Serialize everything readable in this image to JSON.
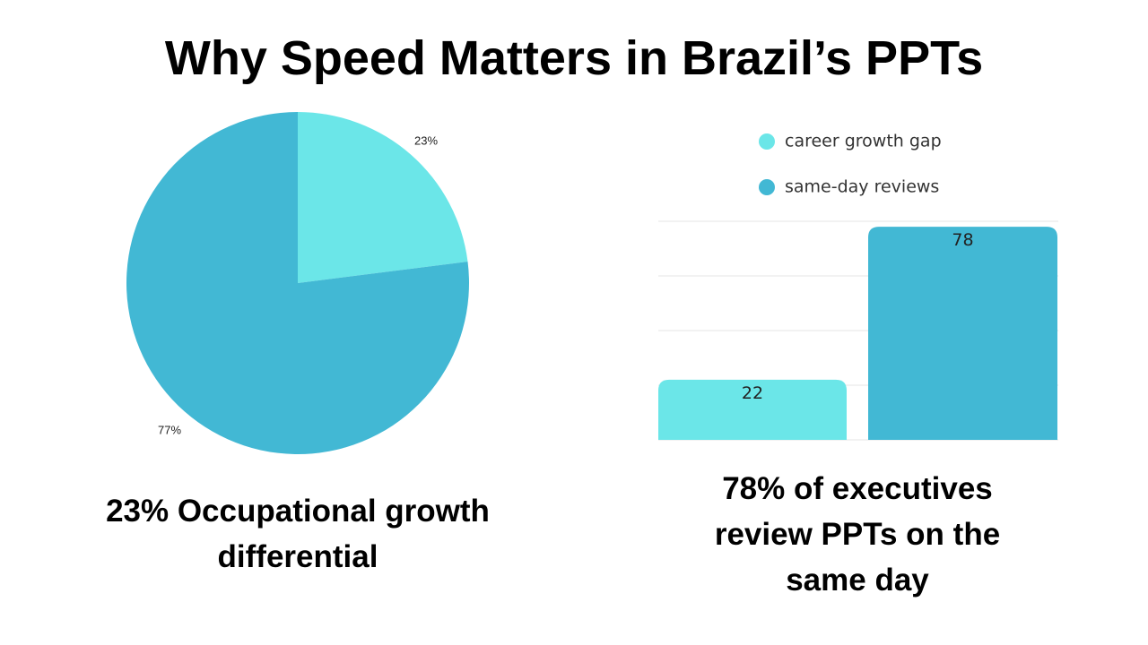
{
  "title": "Why Speed Matters in Brazil’s PPTs",
  "colors": {
    "cyan": "#6be6e8",
    "teal": "#42b8d4",
    "grid": "#e6e6e6"
  },
  "chart_data": [
    {
      "type": "pie",
      "slices": [
        {
          "label": "23%",
          "value": 23,
          "color": "#6be6e8"
        },
        {
          "label": "77%",
          "value": 77,
          "color": "#42b8d4"
        }
      ],
      "caption": "23% Occupational growth differential"
    },
    {
      "type": "bar",
      "series": [
        {
          "name": "career growth gap",
          "values": [
            22
          ],
          "color": "#6be6e8"
        },
        {
          "name": "same-day reviews",
          "values": [
            78
          ],
          "color": "#42b8d4"
        }
      ],
      "value_labels": [
        "22",
        "78"
      ],
      "ylim": [
        0,
        80
      ],
      "grid": true,
      "legend_position": "top-center",
      "caption": "78% of executives review PPTs on the same day"
    }
  ]
}
